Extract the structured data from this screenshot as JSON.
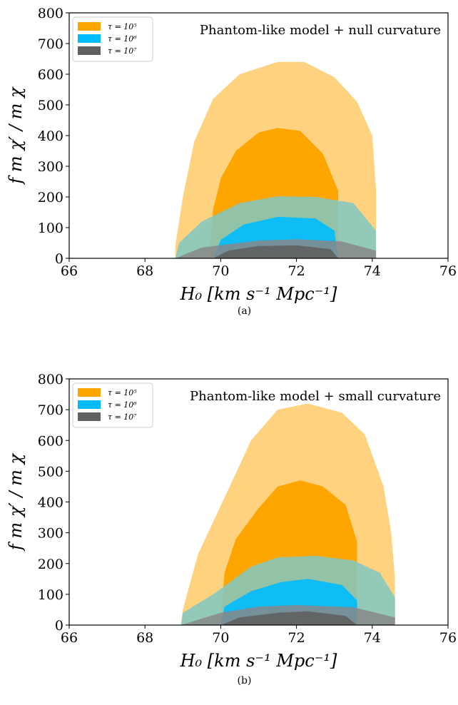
{
  "chart_data": [
    {
      "type": "area",
      "caption": "(a)",
      "annotation": "Phantom-like model + null curvature",
      "xlabel": "H₀ [km s⁻¹ Mpc⁻¹]",
      "ylabel": "f m χ′ / m χ",
      "xlim": [
        66,
        76
      ],
      "ylim": [
        0,
        800
      ],
      "xticks": [
        66,
        68,
        70,
        72,
        74,
        76
      ],
      "yticks": [
        0,
        100,
        200,
        300,
        400,
        500,
        600,
        700,
        800
      ],
      "legend_position": "top-left",
      "series": [
        {
          "name": "τ = 10⁵",
          "colors": {
            "outer": "#fed27f",
            "inner": "#ffa500"
          },
          "outer": [
            [
              68.8,
              0
            ],
            [
              68.8,
              40
            ],
            [
              69.0,
              200
            ],
            [
              69.3,
              380
            ],
            [
              69.8,
              520
            ],
            [
              70.5,
              600
            ],
            [
              71.5,
              640
            ],
            [
              72.2,
              640
            ],
            [
              73.0,
              590
            ],
            [
              73.6,
              510
            ],
            [
              74.0,
              400
            ],
            [
              74.1,
              220
            ],
            [
              74.1,
              0
            ]
          ],
          "inner": [
            [
              69.7,
              0
            ],
            [
              69.8,
              160
            ],
            [
              70.0,
              260
            ],
            [
              70.4,
              350
            ],
            [
              71.0,
              410
            ],
            [
              71.5,
              425
            ],
            [
              72.1,
              415
            ],
            [
              72.7,
              340
            ],
            [
              73.1,
              220
            ],
            [
              73.1,
              0
            ]
          ]
        },
        {
          "name": "τ = 10⁶",
          "colors": {
            "outer": "#80c8c3",
            "inner": "#00bbff"
          },
          "outer": [
            [
              68.8,
              0
            ],
            [
              68.9,
              50
            ],
            [
              69.5,
              120
            ],
            [
              70.5,
              180
            ],
            [
              71.5,
              202
            ],
            [
              72.5,
              200
            ],
            [
              73.5,
              180
            ],
            [
              74.1,
              90
            ],
            [
              74.1,
              0
            ]
          ],
          "inner": [
            [
              69.8,
              0
            ],
            [
              70.0,
              60
            ],
            [
              70.6,
              110
            ],
            [
              71.5,
              135
            ],
            [
              72.5,
              130
            ],
            [
              73.0,
              90
            ],
            [
              73.1,
              0
            ]
          ]
        },
        {
          "name": "τ = 10⁷",
          "colors": {
            "outer": "#888888",
            "inner": "#606060"
          },
          "outer": [
            [
              68.8,
              0
            ],
            [
              69.5,
              35
            ],
            [
              71.0,
              58
            ],
            [
              72.0,
              62
            ],
            [
              73.2,
              55
            ],
            [
              74.1,
              25
            ],
            [
              74.1,
              0
            ]
          ],
          "inner": [
            [
              69.8,
              0
            ],
            [
              70.2,
              25
            ],
            [
              71.0,
              40
            ],
            [
              72.0,
              42
            ],
            [
              72.9,
              30
            ],
            [
              73.1,
              0
            ]
          ]
        }
      ]
    },
    {
      "type": "area",
      "caption": "(b)",
      "annotation": "Phantom-like model + small curvature",
      "xlabel": "H₀ [km s⁻¹ Mpc⁻¹]",
      "ylabel": "f m χ′ / m χ",
      "xlim": [
        66,
        76
      ],
      "ylim": [
        0,
        800
      ],
      "xticks": [
        66,
        68,
        70,
        72,
        74,
        76
      ],
      "yticks": [
        0,
        100,
        200,
        300,
        400,
        500,
        600,
        700,
        800
      ],
      "legend_position": "top-left",
      "series": [
        {
          "name": "τ = 10⁵",
          "colors": {
            "outer": "#fed27f",
            "inner": "#ffa500"
          },
          "outer": [
            [
              68.95,
              0
            ],
            [
              69.0,
              50
            ],
            [
              69.4,
              230
            ],
            [
              70.2,
              440
            ],
            [
              70.8,
              600
            ],
            [
              71.5,
              700
            ],
            [
              72.3,
              720
            ],
            [
              73.2,
              690
            ],
            [
              73.8,
              620
            ],
            [
              74.3,
              450
            ],
            [
              74.5,
              300
            ],
            [
              74.6,
              150
            ],
            [
              74.6,
              0
            ]
          ],
          "inner": [
            [
              70.0,
              0
            ],
            [
              70.1,
              170
            ],
            [
              70.4,
              280
            ],
            [
              71.0,
              380
            ],
            [
              71.5,
              450
            ],
            [
              72.1,
              470
            ],
            [
              72.7,
              450
            ],
            [
              73.3,
              390
            ],
            [
              73.6,
              270
            ],
            [
              73.6,
              0
            ]
          ]
        },
        {
          "name": "τ = 10⁶",
          "colors": {
            "outer": "#80c8c3",
            "inner": "#00bbff"
          },
          "outer": [
            [
              68.95,
              0
            ],
            [
              69.0,
              40
            ],
            [
              69.8,
              100
            ],
            [
              70.8,
              190
            ],
            [
              71.5,
              220
            ],
            [
              72.5,
              225
            ],
            [
              73.5,
              210
            ],
            [
              74.2,
              170
            ],
            [
              74.6,
              90
            ],
            [
              74.6,
              0
            ]
          ],
          "inner": [
            [
              70.0,
              0
            ],
            [
              70.1,
              60
            ],
            [
              70.8,
              110
            ],
            [
              71.6,
              140
            ],
            [
              72.3,
              150
            ],
            [
              73.2,
              130
            ],
            [
              73.6,
              80
            ],
            [
              73.6,
              0
            ]
          ]
        },
        {
          "name": "τ = 10⁷",
          "colors": {
            "outer": "#888888",
            "inner": "#606060"
          },
          "outer": [
            [
              68.95,
              0
            ],
            [
              70.0,
              40
            ],
            [
              71.0,
              60
            ],
            [
              72.0,
              65
            ],
            [
              73.5,
              58
            ],
            [
              74.6,
              25
            ],
            [
              74.6,
              0
            ]
          ],
          "inner": [
            [
              70.0,
              0
            ],
            [
              70.5,
              25
            ],
            [
              71.5,
              40
            ],
            [
              72.3,
              45
            ],
            [
              73.3,
              30
            ],
            [
              73.6,
              0
            ]
          ]
        }
      ]
    }
  ]
}
